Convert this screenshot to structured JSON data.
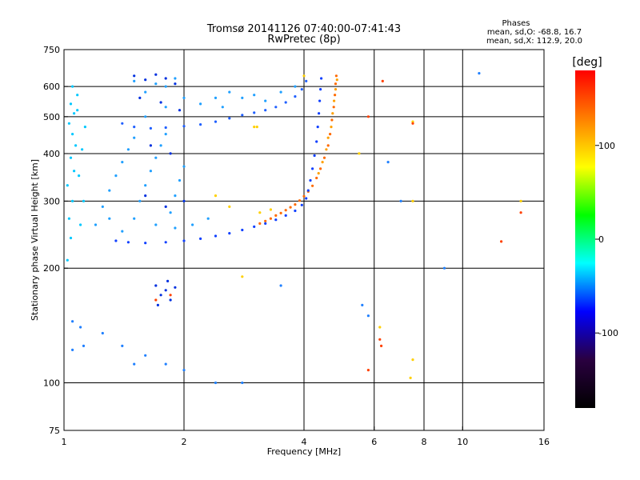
{
  "chart_data": {
    "type": "scatter",
    "title": "Tromsø 20141126 07:40:00-07:41:43",
    "subtitle": "RwPretec (8p)",
    "xlabel": "Frequency [MHz]",
    "ylabel": "Stationary phase Virtual Height [km]",
    "x_scale": "log",
    "y_scale": "log",
    "xlim": [
      1,
      16
    ],
    "ylim": [
      75,
      750
    ],
    "x_ticks": [
      1,
      2,
      4,
      6,
      8,
      10,
      16
    ],
    "y_ticks": [
      75,
      100,
      200,
      300,
      400,
      500,
      600,
      750
    ],
    "x_grid": [
      2,
      4,
      6,
      8,
      10
    ],
    "y_grid": [
      100,
      200,
      300,
      400,
      500,
      600
    ],
    "grid": true,
    "phase_box": {
      "title": "Phases",
      "line1": "mean, sd,O: -68.8, 16.7",
      "line2": "mean, sd,X: 112.9, 20.0"
    },
    "colorbar": {
      "label": "[deg]",
      "range": [
        -180,
        180
      ],
      "ticks": [
        100,
        0,
        -100
      ],
      "gradient": [
        "#ff0000",
        "#ff8000",
        "#ffff00",
        "#00ff00",
        "#00ffff",
        "#0000ff",
        "#2a0040",
        "#000000"
      ]
    },
    "series": [
      {
        "color": "#ff6a00",
        "points": [
          [
            3.1,
            262
          ],
          [
            3.2,
            266
          ],
          [
            3.3,
            270
          ],
          [
            3.4,
            275
          ],
          [
            3.5,
            279
          ],
          [
            3.6,
            284
          ],
          [
            3.7,
            289
          ],
          [
            3.8,
            294
          ],
          [
            3.9,
            301
          ],
          [
            4.0,
            309
          ],
          [
            4.1,
            318
          ],
          [
            4.2,
            329
          ],
          [
            4.3,
            345
          ],
          [
            4.4,
            365
          ],
          [
            4.5,
            390
          ],
          [
            4.6,
            420
          ],
          [
            4.65,
            450
          ],
          [
            4.7,
            490
          ],
          [
            4.75,
            530
          ],
          [
            4.78,
            570
          ],
          [
            4.8,
            610
          ],
          [
            4.82,
            640
          ]
        ]
      },
      {
        "color": "#ffa000",
        "points": [
          [
            4.35,
            355
          ],
          [
            4.45,
            380
          ],
          [
            4.55,
            410
          ],
          [
            4.6,
            440
          ],
          [
            4.68,
            470
          ],
          [
            4.72,
            510
          ],
          [
            4.76,
            550
          ],
          [
            4.8,
            590
          ],
          [
            4.84,
            625
          ]
        ]
      },
      {
        "color": "#1040ff",
        "points": [
          [
            1.35,
            236
          ],
          [
            1.45,
            234
          ],
          [
            1.6,
            233
          ],
          [
            1.8,
            234
          ],
          [
            2.0,
            236
          ],
          [
            2.2,
            239
          ],
          [
            2.4,
            243
          ],
          [
            2.6,
            247
          ],
          [
            2.8,
            252
          ],
          [
            3.0,
            257
          ],
          [
            3.2,
            262
          ],
          [
            3.4,
            268
          ],
          [
            3.6,
            275
          ],
          [
            3.8,
            283
          ],
          [
            3.95,
            293
          ],
          [
            4.05,
            305
          ],
          [
            4.1,
            320
          ],
          [
            4.15,
            340
          ],
          [
            4.2,
            365
          ],
          [
            4.25,
            395
          ],
          [
            4.3,
            430
          ],
          [
            4.33,
            470
          ],
          [
            4.36,
            510
          ],
          [
            4.38,
            550
          ],
          [
            4.4,
            590
          ],
          [
            4.42,
            630
          ]
        ]
      },
      {
        "color": "#2060ff",
        "points": [
          [
            1.4,
            480
          ],
          [
            1.5,
            470
          ],
          [
            1.65,
            466
          ],
          [
            1.8,
            468
          ],
          [
            2.0,
            472
          ],
          [
            2.2,
            477
          ],
          [
            2.4,
            485
          ],
          [
            2.6,
            495
          ],
          [
            2.8,
            505
          ],
          [
            3.0,
            512
          ],
          [
            3.2,
            520
          ],
          [
            3.4,
            530
          ],
          [
            3.6,
            545
          ],
          [
            3.8,
            565
          ],
          [
            3.95,
            590
          ],
          [
            4.05,
            620
          ]
        ]
      },
      {
        "color": "#00c8ff",
        "points": [
          [
            1.02,
            210
          ],
          [
            1.04,
            240
          ],
          [
            1.03,
            270
          ],
          [
            1.05,
            300
          ],
          [
            1.02,
            330
          ],
          [
            1.06,
            360
          ],
          [
            1.04,
            390
          ],
          [
            1.07,
            420
          ],
          [
            1.05,
            450
          ],
          [
            1.03,
            480
          ],
          [
            1.06,
            510
          ],
          [
            1.04,
            540
          ],
          [
            1.08,
            570
          ],
          [
            1.05,
            600
          ],
          [
            1.1,
            260
          ],
          [
            1.12,
            300
          ],
          [
            1.09,
            350
          ],
          [
            1.11,
            410
          ],
          [
            1.13,
            470
          ],
          [
            1.08,
            520
          ]
        ]
      },
      {
        "color": "#20a0ff",
        "points": [
          [
            1.2,
            260
          ],
          [
            1.25,
            290
          ],
          [
            1.3,
            320
          ],
          [
            1.35,
            350
          ],
          [
            1.4,
            380
          ],
          [
            1.45,
            410
          ],
          [
            1.5,
            440
          ],
          [
            1.55,
            300
          ],
          [
            1.6,
            330
          ],
          [
            1.65,
            360
          ],
          [
            1.7,
            390
          ],
          [
            1.75,
            420
          ],
          [
            1.8,
            450
          ],
          [
            1.85,
            280
          ],
          [
            1.9,
            310
          ],
          [
            1.95,
            340
          ],
          [
            2.0,
            370
          ],
          [
            1.3,
            270
          ],
          [
            1.4,
            250
          ],
          [
            1.5,
            270
          ],
          [
            1.7,
            260
          ],
          [
            1.9,
            255
          ],
          [
            2.1,
            260
          ],
          [
            2.3,
            270
          ],
          [
            1.6,
            500
          ],
          [
            1.8,
            530
          ],
          [
            2.0,
            560
          ],
          [
            2.2,
            540
          ],
          [
            2.4,
            560
          ],
          [
            2.6,
            580
          ],
          [
            2.8,
            560
          ],
          [
            3.0,
            570
          ],
          [
            3.2,
            550
          ],
          [
            3.5,
            580
          ],
          [
            3.8,
            600
          ],
          [
            2.5,
            530
          ],
          [
            1.5,
            620
          ],
          [
            1.7,
            610
          ],
          [
            1.9,
            630
          ],
          [
            1.6,
            580
          ],
          [
            1.8,
            600
          ]
        ]
      },
      {
        "color": "#0030e0",
        "points": [
          [
            1.5,
            640
          ],
          [
            1.6,
            625
          ],
          [
            1.7,
            645
          ],
          [
            1.8,
            630
          ],
          [
            1.9,
            610
          ],
          [
            1.55,
            560
          ],
          [
            1.75,
            545
          ],
          [
            1.95,
            520
          ],
          [
            1.65,
            420
          ],
          [
            1.85,
            400
          ],
          [
            1.6,
            310
          ],
          [
            1.8,
            290
          ],
          [
            2.0,
            300
          ],
          [
            1.7,
            180
          ],
          [
            1.75,
            170
          ],
          [
            1.8,
            175
          ],
          [
            1.85,
            165
          ],
          [
            1.9,
            178
          ],
          [
            1.72,
            160
          ],
          [
            1.82,
            185
          ]
        ]
      },
      {
        "color": "#2080ff",
        "points": [
          [
            1.05,
            145
          ],
          [
            1.1,
            140
          ],
          [
            1.12,
            125
          ],
          [
            1.05,
            122
          ],
          [
            1.25,
            135
          ],
          [
            1.4,
            125
          ],
          [
            1.5,
            112
          ],
          [
            1.6,
            118
          ],
          [
            1.8,
            112
          ],
          [
            2.0,
            108
          ],
          [
            2.4,
            100
          ],
          [
            2.8,
            100
          ],
          [
            3.5,
            180
          ],
          [
            5.6,
            160
          ],
          [
            5.8,
            150
          ],
          [
            6.5,
            380
          ],
          [
            7.0,
            300
          ],
          [
            9.0,
            200
          ],
          [
            11.0,
            650
          ]
        ]
      },
      {
        "color": "#ffd000",
        "points": [
          [
            3.0,
            470
          ],
          [
            3.05,
            470
          ],
          [
            2.4,
            310
          ],
          [
            2.6,
            290
          ],
          [
            3.1,
            280
          ],
          [
            3.3,
            285
          ],
          [
            4.0,
            640
          ],
          [
            5.5,
            400
          ],
          [
            6.2,
            140
          ],
          [
            7.5,
            485
          ],
          [
            7.5,
            300
          ],
          [
            7.5,
            115
          ],
          [
            7.4,
            103
          ],
          [
            2.8,
            190
          ],
          [
            14.0,
            300
          ]
        ]
      },
      {
        "color": "#ff4000",
        "points": [
          [
            6.3,
            620
          ],
          [
            6.2,
            130
          ],
          [
            6.25,
            125
          ],
          [
            5.8,
            108
          ],
          [
            12.5,
            235
          ],
          [
            14.0,
            280
          ],
          [
            1.85,
            170
          ],
          [
            1.7,
            165
          ],
          [
            5.8,
            500
          ],
          [
            7.5,
            480
          ]
        ]
      }
    ]
  }
}
